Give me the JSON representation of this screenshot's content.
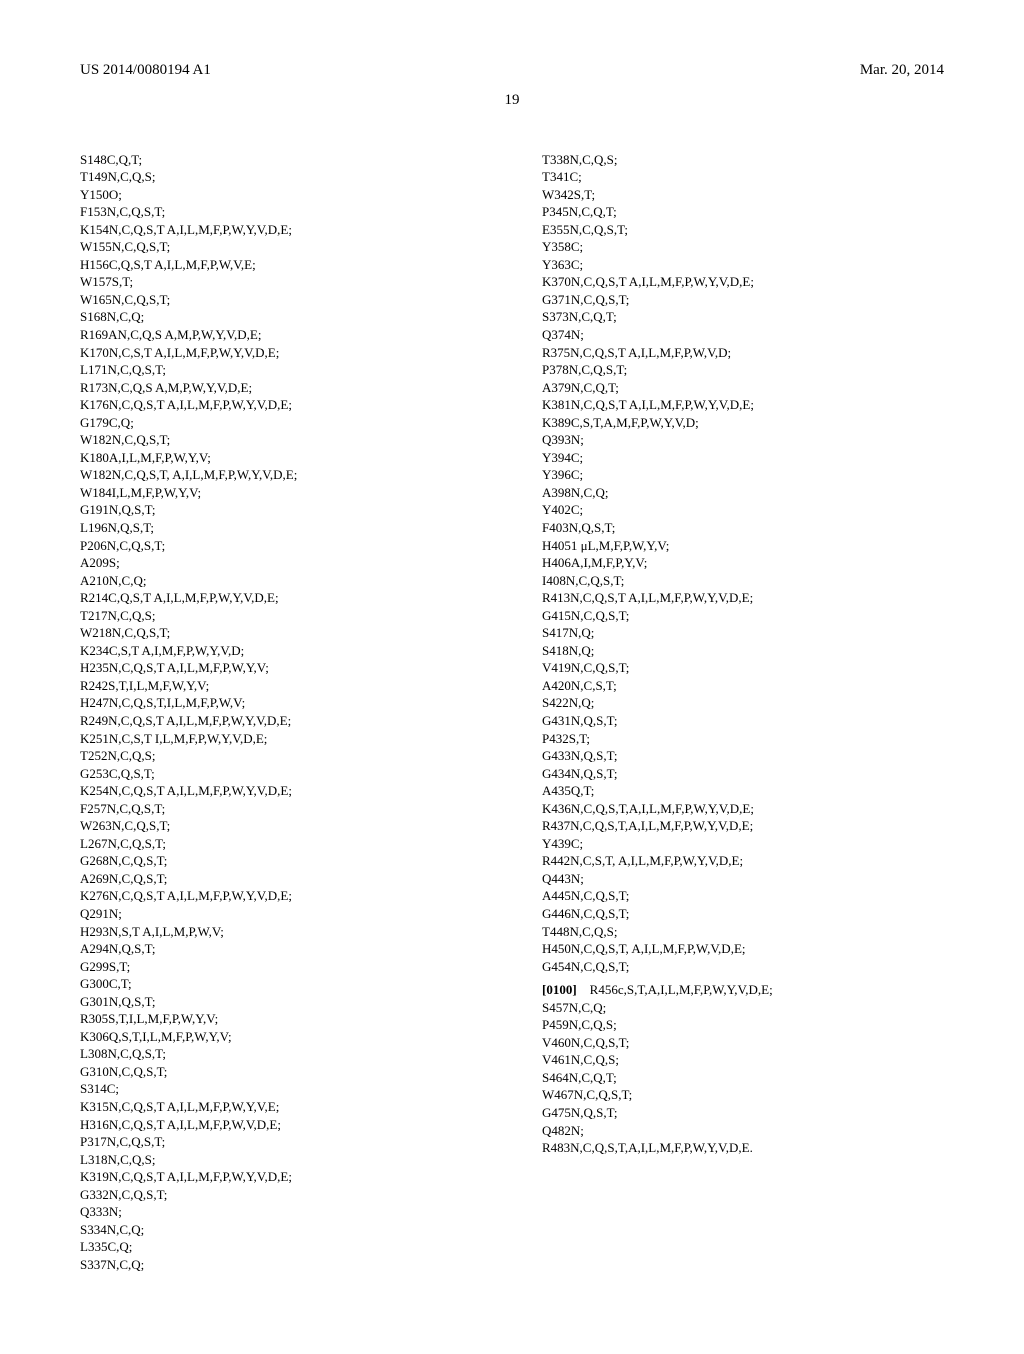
{
  "header": {
    "pub_number": "US 2014/0080194 A1",
    "pub_date": "Mar. 20, 2014"
  },
  "page_number": "19",
  "col1": [
    "S148C,Q,T;",
    "T149N,C,Q,S;",
    "Y150O;",
    "F153N,C,Q,S,T;",
    "K154N,C,Q,S,T A,I,L,M,F,P,W,Y,V,D,E;",
    "W155N,C,Q,S,T;",
    "H156C,Q,S,T A,I,L,M,F,P,W,V,E;",
    "W157S,T;",
    "W165N,C,Q,S,T;",
    "S168N,C,Q;",
    "R169AN,C,Q,S A,M,P,W,Y,V,D,E;",
    "K170N,C,S,T A,I,L,M,F,P,W,Y,V,D,E;",
    "L171N,C,Q,S,T;",
    "R173N,C,Q,S A,M,P,W,Y,V,D,E;",
    "K176N,C,Q,S,T A,I,L,M,F,P,W,Y,V,D,E;",
    "G179C,Q;",
    "W182N,C,Q,S,T;",
    "K180A,I,L,M,F,P,W,Y,V;",
    "W182N,C,Q,S,T, A,I,L,M,F,P,W,Y,V,D,E;",
    "W184I,L,M,F,P,W,Y,V;",
    "G191N,Q,S,T;",
    "L196N,Q,S,T;",
    "P206N,C,Q,S,T;",
    "A209S;",
    "A210N,C,Q;",
    "R214C,Q,S,T A,I,L,M,F,P,W,Y,V,D,E;",
    "T217N,C,Q,S;",
    "W218N,C,Q,S,T;",
    "K234C,S,T A,I,M,F,P,W,Y,V,D;",
    "H235N,C,Q,S,T A,I,L,M,F,P,W,Y,V;",
    "R242S,T,I,L,M,F,W,Y,V;",
    "H247N,C,Q,S,T,I,L,M,F,P,W,V;",
    "R249N,C,Q,S,T A,I,L,M,F,P,W,Y,V,D,E;",
    "K251N,C,S,T I,L,M,F,P,W,Y,V,D,E;",
    "T252N,C,Q,S;",
    "G253C,Q,S,T;",
    "K254N,C,Q,S,T A,I,L,M,F,P,W,Y,V,D,E;",
    "F257N,C,Q,S,T;",
    "W263N,C,Q,S,T;",
    "L267N,C,Q,S,T;",
    "G268N,C,Q,S,T;",
    "A269N,C,Q,S,T;",
    "K276N,C,Q,S,T A,I,L,M,F,P,W,Y,V,D,E;",
    "Q291N;",
    "H293N,S,T A,I,L,M,P,W,V;",
    "A294N,Q,S,T;",
    "G299S,T;",
    "G300C,T;",
    "G301N,Q,S,T;",
    "R305S,T,I,L,M,F,P,W,Y,V;",
    "K306Q,S,T,I,L,M,F,P,W,Y,V;",
    "L308N,C,Q,S,T;",
    "G310N,C,Q,S,T;",
    "S314C;",
    "K315N,C,Q,S,T A,I,L,M,F,P,W,Y,V,E;",
    "H316N,C,Q,S,T A,I,L,M,F,P,W,V,D,E;",
    "P317N,C,Q,S,T;",
    "L318N,C,Q,S;",
    "K319N,C,Q,S,T A,I,L,M,F,P,W,Y,V,D,E;",
    "G332N,C,Q,S,T;",
    "Q333N;",
    "S334N,C,Q;",
    "L335C,Q;",
    "S337N,C,Q;"
  ],
  "col2_part1": [
    "T338N,C,Q,S;",
    "T341C;",
    "W342S,T;",
    "P345N,C,Q,T;",
    "E355N,C,Q,S,T;",
    "Y358C;",
    "Y363C;",
    "K370N,C,Q,S,T A,I,L,M,F,P,W,Y,V,D,E;",
    "G371N,C,Q,S,T;",
    "S373N,C,Q,T;",
    "Q374N;",
    "R375N,C,Q,S,T A,I,L,M,F,P,W,V,D;",
    "P378N,C,Q,S,T;",
    "A379N,C,Q,T;",
    "K381N,C,Q,S,T A,I,L,M,F,P,W,Y,V,D,E;",
    "K389C,S,T,A,M,F,P,W,Y,V,D;",
    "Q393N;",
    "Y394C;",
    "Y396C;",
    "A398N,C,Q;",
    "Y402C;",
    "F403N,Q,S,T;",
    "H4051 μL,M,F,P,W,Y,V;",
    "H406A,I,M,F,P,Y,V;",
    "I408N,C,Q,S,T;",
    "R413N,C,Q,S,T A,I,L,M,F,P,W,Y,V,D,E;",
    "G415N,C,Q,S,T;",
    "S417N,Q;",
    "S418N,Q;",
    "V419N,C,Q,S,T;",
    "A420N,C,S,T;",
    "S422N,Q;",
    "G431N,Q,S,T;",
    "P432S,T;",
    "G433N,Q,S,T;",
    "G434N,Q,S,T;",
    "A435Q,T;",
    "K436N,C,Q,S,T,A,I,L,M,F,P,W,Y,V,D,E;",
    "R437N,C,Q,S,T,A,I,L,M,F,P,W,Y,V,D,E;",
    "Y439C;",
    "R442N,C,S,T, A,I,L,M,F,P,W,Y,V,D,E;",
    "Q443N;",
    "A445N,C,Q,S,T;",
    "G446N,C,Q,S,T;",
    "T448N,C,Q,S;",
    "H450N,C,Q,S,T, A,I,L,M,F,P,W,V,D,E;",
    "G454N,C,Q,S,T;"
  ],
  "para_marker": "[0100]",
  "para_first": "R456c,S,T,A,I,L,M,F,P,W,Y,V,D,E;",
  "col2_part2": [
    "S457N,C,Q;",
    "P459N,C,Q,S;",
    "V460N,C,Q,S,T;",
    "V461N,C,Q,S;",
    "S464N,C,Q,T;",
    "W467N,C,Q,S,T;",
    "G475N,Q,S,T;",
    "Q482N;",
    "R483N,C,Q,S,T,A,I,L,M,F,P,W,Y,V,D,E."
  ]
}
